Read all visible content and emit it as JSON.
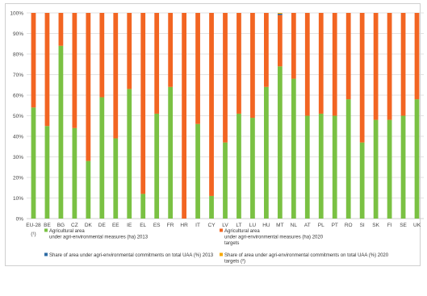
{
  "chart_data": {
    "type": "bar",
    "stacked": true,
    "percent_stacked": true,
    "categories": [
      "EU-28",
      "BE",
      "BG",
      "CZ",
      "DK",
      "DE",
      "EE",
      "IE",
      "EL",
      "ES",
      "FR",
      "HR",
      "IT",
      "CY",
      "LV",
      "LT",
      "LU",
      "HU",
      "MT",
      "NL",
      "AT",
      "PL",
      "PT",
      "RO",
      "SI",
      "SK",
      "FI",
      "SE",
      "UK"
    ],
    "category_note": "(¹)",
    "ylim": [
      0,
      100
    ],
    "ytick_labels": [
      "0%",
      "10%",
      "20%",
      "30%",
      "40%",
      "50%",
      "60%",
      "70%",
      "80%",
      "90%",
      "100%"
    ],
    "grid": true,
    "legend_position": "bottom",
    "series": [
      {
        "name": "Agricultural area under agri-environmental measures (ha) 2013",
        "name_lines": [
          "Agricultural area",
          "under agri-environmental measures (ha) 2013"
        ],
        "color": "#7ac143",
        "values": [
          54,
          45,
          84,
          44,
          28,
          59,
          39,
          63,
          12,
          51,
          64,
          0,
          46,
          11,
          37,
          51,
          49,
          64,
          74,
          68,
          50,
          51,
          50,
          58,
          37,
          48,
          48,
          50,
          58
        ]
      },
      {
        "name": "Agricultural area under agri-environmental measures (ha) 2020 targets",
        "name_lines": [
          "Agricultural area",
          "under agri-environmental measures (ha) 2020",
          "targets"
        ],
        "color": "#f26522",
        "values": [
          46,
          55,
          16,
          56,
          72,
          41,
          61,
          37,
          88,
          49,
          36,
          100,
          54,
          89,
          63,
          49,
          51,
          36,
          25,
          32,
          50,
          49,
          50,
          42,
          63,
          52,
          52,
          50,
          42
        ]
      },
      {
        "name": "Share of area under agri-environmental commitments on total UAA (%) 2013",
        "name_lines": [
          "Share of area under agri-environmental commitments on total UAA (%) 2013"
        ],
        "color": "#2e6ca4",
        "values": [
          0,
          0,
          0,
          0,
          0,
          0,
          0,
          0,
          0,
          0,
          0,
          0,
          0,
          0,
          0,
          0,
          0,
          0,
          0.6,
          0,
          0,
          0,
          0,
          0,
          0,
          0,
          0,
          0,
          0
        ]
      },
      {
        "name": "Share of area under agri-environmental commitments on total UAA (%) 2020 targets (²)",
        "name_lines": [
          "Share of area under agri-environmental commitments on total UAA (%) 2020",
          "targets (²)"
        ],
        "color": "#f7a800",
        "values": [
          0,
          0,
          0,
          0,
          0,
          0,
          0,
          0,
          0,
          0,
          0,
          0,
          0,
          0,
          0,
          0,
          0,
          0,
          0.4,
          0,
          0,
          0,
          0,
          0,
          0,
          0,
          0,
          0,
          0
        ]
      }
    ]
  },
  "colors": {
    "grid": "#d9d9d9",
    "axis": "#bfbfbf"
  }
}
